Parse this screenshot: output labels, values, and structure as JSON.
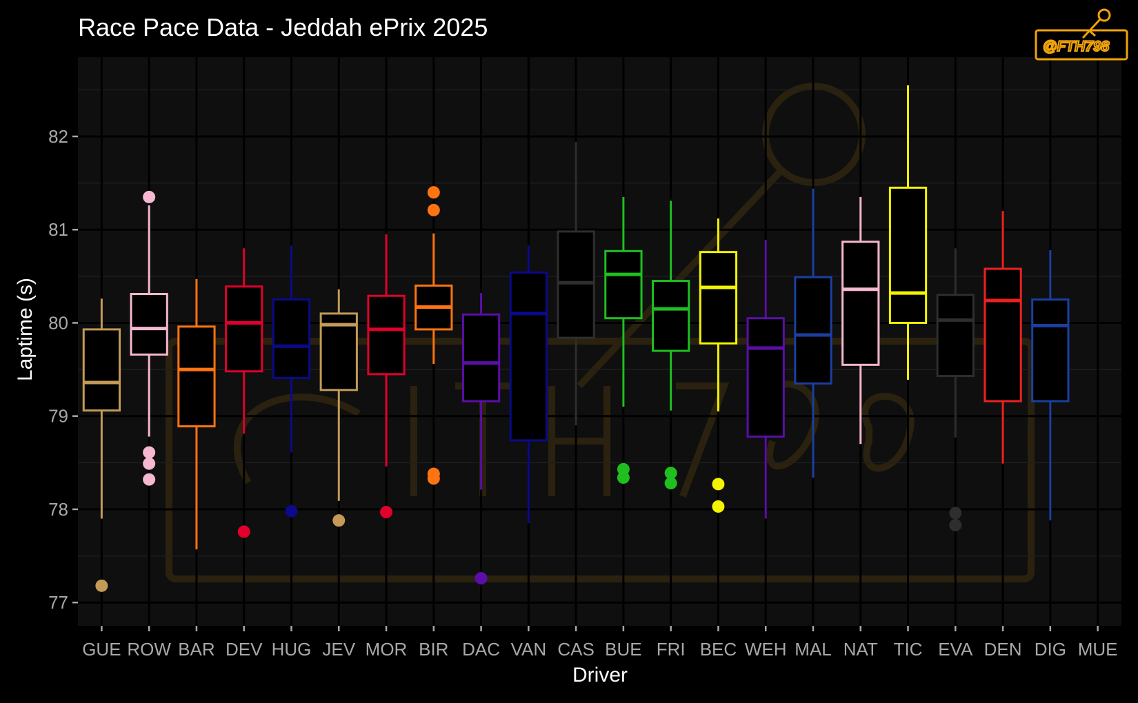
{
  "chart_data": {
    "type": "boxplot",
    "title": "Race Pace Data - Jeddah ePrix 2025",
    "xlabel": "Driver",
    "ylabel": "Laptime (s)",
    "ylim": [
      76.75,
      82.85
    ],
    "yticks": [
      77,
      78,
      79,
      80,
      81,
      82
    ],
    "grid": true,
    "background": "#0f0f0f",
    "categories": [
      "GUE",
      "ROW",
      "BAR",
      "DEV",
      "HUG",
      "JEV",
      "MOR",
      "BIR",
      "DAC",
      "VAN",
      "CAS",
      "BUE",
      "FRI",
      "BEC",
      "WEH",
      "MAL",
      "NAT",
      "TIC",
      "EVA",
      "DEN",
      "DIG",
      "MUE"
    ],
    "boxes": [
      {
        "driver": "GUE",
        "color": "#c49a56",
        "whisker_low": 77.9,
        "q1": 79.06,
        "median": 79.36,
        "q3": 79.93,
        "whisker_high": 80.26,
        "outliers": [
          77.18
        ]
      },
      {
        "driver": "ROW",
        "color": "#f5b8d0",
        "whisker_low": 78.78,
        "q1": 79.66,
        "median": 79.94,
        "q3": 80.31,
        "whisker_high": 81.26,
        "outliers": [
          81.35,
          78.61,
          78.49,
          78.32
        ]
      },
      {
        "driver": "BAR",
        "color": "#ff7410",
        "whisker_low": 77.57,
        "q1": 78.89,
        "median": 79.5,
        "q3": 79.96,
        "whisker_high": 80.47,
        "outliers": []
      },
      {
        "driver": "DEV",
        "color": "#e0002b",
        "whisker_low": 78.81,
        "q1": 79.48,
        "median": 80.0,
        "q3": 80.39,
        "whisker_high": 80.8,
        "outliers": [
          77.76
        ]
      },
      {
        "driver": "HUG",
        "color": "#0a0a8a",
        "whisker_low": 78.61,
        "q1": 79.41,
        "median": 79.75,
        "q3": 80.25,
        "whisker_high": 80.83,
        "outliers": [
          77.98
        ]
      },
      {
        "driver": "JEV",
        "color": "#c49a56",
        "whisker_low": 78.09,
        "q1": 79.28,
        "median": 79.98,
        "q3": 80.1,
        "whisker_high": 80.36,
        "outliers": [
          77.88
        ]
      },
      {
        "driver": "MOR",
        "color": "#e0002b",
        "whisker_low": 78.46,
        "q1": 79.45,
        "median": 79.93,
        "q3": 80.29,
        "whisker_high": 80.95,
        "outliers": [
          77.97
        ]
      },
      {
        "driver": "BIR",
        "color": "#ff7410",
        "whisker_low": 79.56,
        "q1": 79.93,
        "median": 80.17,
        "q3": 80.4,
        "whisker_high": 80.96,
        "outliers": [
          81.4,
          81.21,
          78.38,
          78.33
        ]
      },
      {
        "driver": "DAC",
        "color": "#5b0ea8",
        "whisker_low": 78.21,
        "q1": 79.16,
        "median": 79.57,
        "q3": 80.09,
        "whisker_high": 80.32,
        "outliers": [
          77.26
        ]
      },
      {
        "driver": "VAN",
        "color": "#0a0a8a",
        "whisker_low": 77.85,
        "q1": 78.74,
        "median": 80.1,
        "q3": 80.54,
        "whisker_high": 80.83,
        "outliers": []
      },
      {
        "driver": "CAS",
        "color": "#2e2e2e",
        "whisker_low": 78.9,
        "q1": 79.84,
        "median": 80.43,
        "q3": 80.98,
        "whisker_high": 81.94,
        "outliers": []
      },
      {
        "driver": "BUE",
        "color": "#1fbf1f",
        "whisker_low": 79.1,
        "q1": 80.05,
        "median": 80.52,
        "q3": 80.77,
        "whisker_high": 81.35,
        "outliers": [
          78.43,
          78.34
        ]
      },
      {
        "driver": "FRI",
        "color": "#1fbf1f",
        "whisker_low": 79.06,
        "q1": 79.7,
        "median": 80.15,
        "q3": 80.45,
        "whisker_high": 81.31,
        "outliers": [
          78.39,
          78.28
        ]
      },
      {
        "driver": "BEC",
        "color": "#f4f400",
        "whisker_low": 79.05,
        "q1": 79.78,
        "median": 80.38,
        "q3": 80.76,
        "whisker_high": 81.12,
        "outliers": [
          78.27,
          78.03
        ]
      },
      {
        "driver": "WEH",
        "color": "#5b0ea8",
        "whisker_low": 77.9,
        "q1": 78.78,
        "median": 79.73,
        "q3": 80.05,
        "whisker_high": 80.89,
        "outliers": []
      },
      {
        "driver": "MAL",
        "color": "#1a3fa0",
        "whisker_low": 78.34,
        "q1": 79.35,
        "median": 79.87,
        "q3": 80.49,
        "whisker_high": 81.44,
        "outliers": []
      },
      {
        "driver": "NAT",
        "color": "#f5b8d0",
        "whisker_low": 78.7,
        "q1": 79.55,
        "median": 80.36,
        "q3": 80.87,
        "whisker_high": 81.35,
        "outliers": []
      },
      {
        "driver": "TIC",
        "color": "#f4f400",
        "whisker_low": 79.39,
        "q1": 80.0,
        "median": 80.32,
        "q3": 81.45,
        "whisker_high": 82.55,
        "outliers": []
      },
      {
        "driver": "EVA",
        "color": "#2e2e2e",
        "whisker_low": 78.77,
        "q1": 79.43,
        "median": 80.03,
        "q3": 80.3,
        "whisker_high": 80.8,
        "outliers": [
          77.96,
          77.83
        ]
      },
      {
        "driver": "DEN",
        "color": "#ee2020",
        "whisker_low": 78.49,
        "q1": 79.16,
        "median": 80.24,
        "q3": 80.58,
        "whisker_high": 81.2,
        "outliers": []
      },
      {
        "driver": "DIG",
        "color": "#1a3fa0",
        "whisker_low": 77.88,
        "q1": 79.16,
        "median": 79.97,
        "q3": 80.25,
        "whisker_high": 80.78,
        "outliers": []
      },
      {
        "driver": "MUE",
        "color": "#888888",
        "whisker_low": null,
        "q1": null,
        "median": null,
        "q3": null,
        "whisker_high": null,
        "outliers": []
      }
    ]
  },
  "watermark": {
    "text": "@FTH798",
    "color": "#f0a30a",
    "icon": "key-icon"
  }
}
